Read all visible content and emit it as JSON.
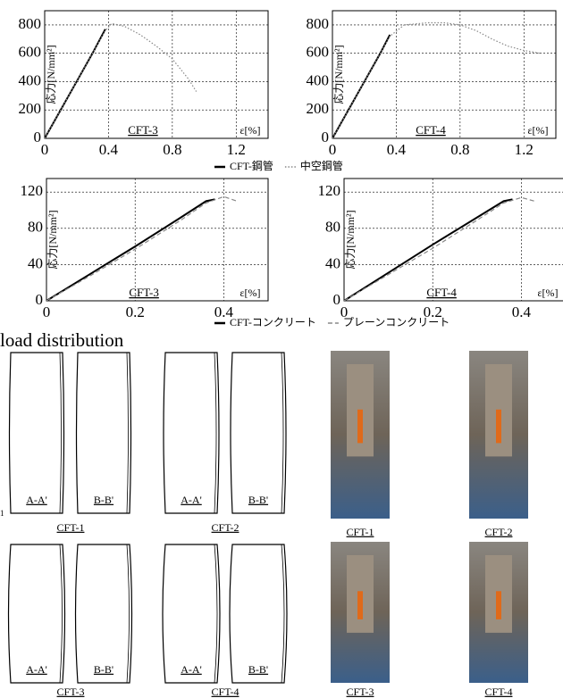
{
  "chart_data": [
    {
      "type": "line",
      "y_label": "応力[N/mm²]",
      "x_label": "ε[%]",
      "xlim": [
        0,
        1.4
      ],
      "ylim": [
        0,
        900
      ],
      "xticks": [
        0,
        0.4,
        0.8,
        1.2
      ],
      "yticks": [
        0,
        200,
        400,
        600,
        800
      ],
      "grid": true,
      "series": [
        {
          "name": "CFT-鋼管",
          "color": "#000000",
          "style": "solid"
        },
        {
          "name": "中空鋼管",
          "color": "#888888",
          "style": "dotted"
        }
      ],
      "panels": [
        {
          "label": "CFT-3",
          "lines": [
            {
              "x": [
                0,
                0.1,
                0.2,
                0.3,
                0.38
              ],
              "values": [
                0,
                200,
                400,
                600,
                770
              ]
            },
            {
              "x": [
                0,
                0.2,
                0.38,
                0.42,
                0.5,
                0.6,
                0.7,
                0.8,
                0.9,
                0.95
              ],
              "values": [
                0,
                400,
                760,
                810,
                790,
                730,
                650,
                560,
                420,
                330
              ]
            }
          ]
        },
        {
          "label": "CFT-4",
          "lines": [
            {
              "x": [
                0,
                0.1,
                0.2,
                0.3,
                0.36
              ],
              "values": [
                0,
                200,
                400,
                600,
                730
              ]
            },
            {
              "x": [
                0,
                0.2,
                0.36,
                0.45,
                0.6,
                0.7,
                0.8,
                0.9,
                1.0,
                1.1,
                1.2,
                1.3
              ],
              "values": [
                0,
                400,
                720,
                800,
                815,
                815,
                800,
                760,
                700,
                650,
                620,
                600
              ]
            }
          ]
        }
      ]
    },
    {
      "type": "line",
      "y_label": "応力[N/mm²]",
      "x_label": "ε[%]",
      "xlim": [
        0,
        0.5
      ],
      "ylim": [
        0,
        135
      ],
      "xticks": [
        0,
        0.2,
        0.4
      ],
      "yticks": [
        0,
        40,
        80,
        120
      ],
      "grid": true,
      "series": [
        {
          "name": "CFT-コンクリート",
          "color": "#000000",
          "style": "solid"
        },
        {
          "name": "プレーンコンクリート",
          "color": "#888888",
          "style": "dashed"
        }
      ],
      "panels": [
        {
          "label": "CFT-3",
          "lines": [
            {
              "x": [
                0,
                0.1,
                0.2,
                0.3,
                0.36,
                0.38
              ],
              "values": [
                0,
                30,
                60,
                91,
                110,
                112
              ]
            },
            {
              "x": [
                0,
                0.1,
                0.2,
                0.3,
                0.36,
                0.4,
                0.43
              ],
              "values": [
                0,
                28,
                57,
                88,
                108,
                115,
                110
              ]
            }
          ]
        },
        {
          "label": "CFT-4",
          "lines": [
            {
              "x": [
                0,
                0.1,
                0.2,
                0.3,
                0.36,
                0.38
              ],
              "values": [
                0,
                31,
                62,
                92,
                110,
                112
              ]
            },
            {
              "x": [
                0,
                0.1,
                0.2,
                0.3,
                0.36,
                0.4,
                0.43
              ],
              "values": [
                0,
                29,
                58,
                89,
                108,
                114,
                110
              ]
            }
          ]
        }
      ]
    }
  ],
  "document": {
    "section_heading": "load distribution",
    "side_mark": "1",
    "drawings": [
      {
        "label": "CFT-1",
        "sections": [
          "A-A'",
          "B-B'"
        ]
      },
      {
        "label": "CFT-2",
        "sections": [
          "A-A'",
          "B-B'"
        ]
      },
      {
        "label": "CFT-3",
        "sections": [
          "A-A'",
          "B-B'"
        ]
      },
      {
        "label": "CFT-4",
        "sections": [
          "A-A'",
          "B-B'"
        ]
      }
    ],
    "photos": [
      {
        "label": "CFT-1"
      },
      {
        "label": "CFT-2"
      },
      {
        "label": "CFT-3"
      },
      {
        "label": "CFT-4"
      }
    ]
  }
}
